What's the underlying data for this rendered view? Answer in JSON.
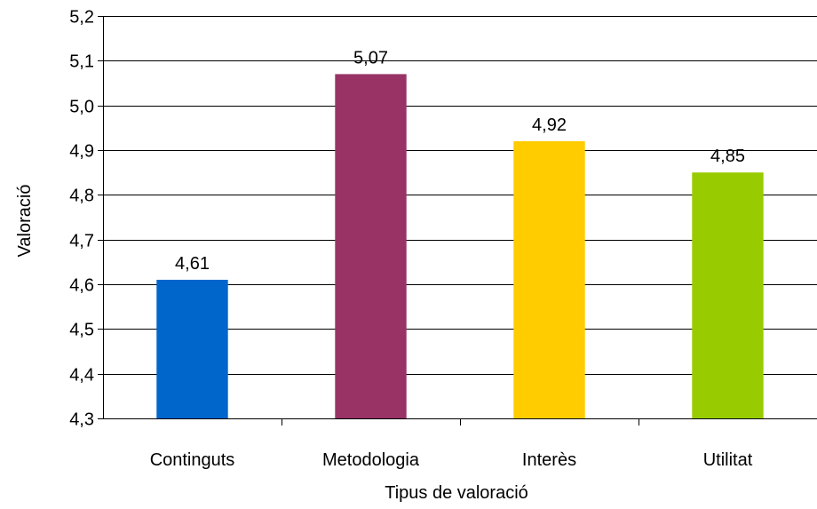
{
  "chart_data": {
    "type": "bar",
    "categories": [
      "Continguts",
      "Metodologia",
      "Interès",
      "Utilitat"
    ],
    "values": [
      4.61,
      5.07,
      4.92,
      4.85
    ],
    "value_labels": [
      "4,61",
      "5,07",
      "4,92",
      "4,85"
    ],
    "colors": [
      "#0066CC",
      "#993366",
      "#FFCC00",
      "#99CC00"
    ],
    "xlabel": "Tipus de valoració",
    "ylabel": "Valoració",
    "ylim": [
      4.3,
      5.2
    ],
    "yticks": [
      4.3,
      4.4,
      4.5,
      4.6,
      4.7,
      4.8,
      4.9,
      5.0,
      5.1,
      5.2
    ],
    "ytick_labels": [
      "4,3",
      "4,4",
      "4,5",
      "4,6",
      "4,7",
      "4,8",
      "4,9",
      "5,0",
      "5,1",
      "5,2"
    ],
    "grid": true,
    "legend": false
  }
}
